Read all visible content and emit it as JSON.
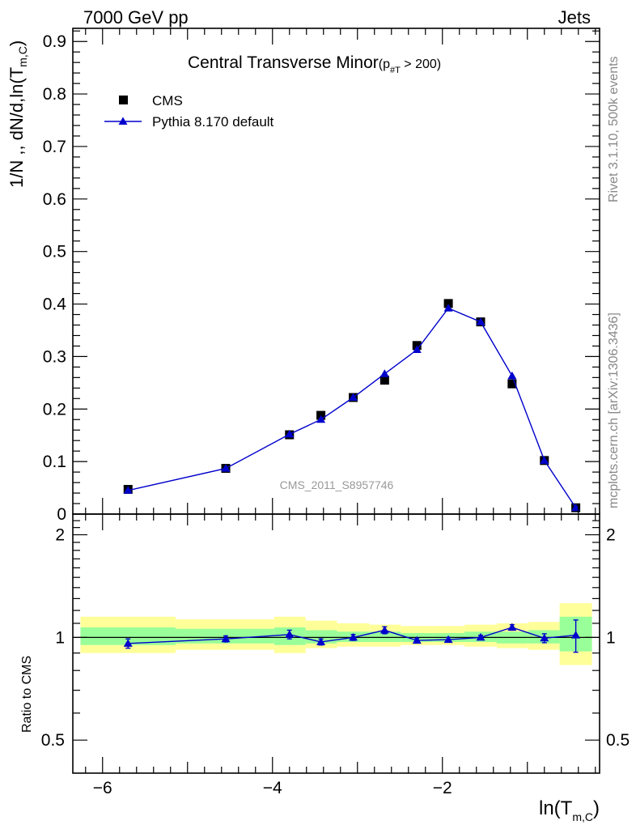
{
  "header": {
    "left": "7000 GeV pp",
    "right": "Jets"
  },
  "side_labels": {
    "rivet": "Rivet 3.1.10,  500k events",
    "mcplots": "mcplots.cern.ch [arXiv:1306.3436]"
  },
  "watermark": "CMS_2011_S8957746",
  "colors": {
    "cms": "#000000",
    "pythia": "#0000cc",
    "band_inner": "#99ff99",
    "band_outer": "#ffff99"
  },
  "chart_data": [
    {
      "type": "scatter",
      "panel": "main",
      "title_main": "Central Transverse Minor",
      "title_sub": "(p",
      "title_sub_index": "#T",
      "title_sub_tail": " > 200)",
      "ylabel": "1/N ,, dN/d,ln(T",
      "ylabel_sub": "m,C",
      "ylabel_tail": ")",
      "xlim": [
        -6.35,
        -0.15
      ],
      "ylim": [
        0,
        0.925
      ],
      "yticks": [
        0,
        0.1,
        0.2,
        0.3,
        0.4,
        0.5,
        0.6,
        0.7,
        0.8,
        0.9
      ],
      "ytick_labels": [
        "0",
        "0.1",
        "0.2",
        "0.3",
        "0.4",
        "0.5",
        "0.6",
        "0.7",
        "0.8",
        "0.9"
      ],
      "legend_position": "top-left",
      "series": [
        {
          "name": "CMS",
          "marker": "square",
          "x": [
            -5.7,
            -4.55,
            -3.8,
            -3.43,
            -3.05,
            -2.68,
            -2.3,
            -1.93,
            -1.55,
            -1.18,
            -0.8,
            -0.43
          ],
          "y": [
            0.047,
            0.087,
            0.151,
            0.188,
            0.222,
            0.255,
            0.321,
            0.401,
            0.366,
            0.248,
            0.102,
            0.012
          ],
          "xerr": [
            0.56,
            0.56,
            0.19,
            0.19,
            0.19,
            0.19,
            0.19,
            0.19,
            0.19,
            0.19,
            0.19,
            0.19
          ]
        },
        {
          "name": "Pythia 8.170 default",
          "marker": "triangle",
          "x": [
            -5.7,
            -4.55,
            -3.8,
            -3.43,
            -3.05,
            -2.68,
            -2.3,
            -1.93,
            -1.55,
            -1.18,
            -0.8,
            -0.43
          ],
          "y": [
            0.045,
            0.087,
            0.152,
            0.18,
            0.222,
            0.267,
            0.313,
            0.392,
            0.366,
            0.263,
            0.102,
            0.012
          ],
          "yerr": [
            0.002,
            0.002,
            0.003,
            0.004,
            0.004,
            0.006,
            0.005,
            0.005,
            0.006,
            0.006,
            0.003,
            0.002
          ]
        }
      ]
    },
    {
      "type": "line",
      "panel": "ratio",
      "ylabel": "Ratio to CMS",
      "xlabel": "ln(T",
      "xlabel_sub": "m,C",
      "xlabel_tail": ")",
      "xlim": [
        -6.35,
        -0.15
      ],
      "ylim": [
        0.4,
        2.3
      ],
      "yticks": [
        0.5,
        1,
        2
      ],
      "ytick_labels": [
        "0.5",
        "1",
        "2"
      ],
      "xticks": [
        -6,
        -4,
        -2
      ],
      "xtick_labels": [
        "−6",
        "−4",
        "−2"
      ],
      "log_y": true,
      "bands": [
        {
          "x0": -6.26,
          "x1": -5.14,
          "lo_outer": 0.9,
          "hi_outer": 1.15,
          "lo_inner": 0.95,
          "hi_inner": 1.07
        },
        {
          "x0": -5.14,
          "x1": -3.98,
          "lo_outer": 0.92,
          "hi_outer": 1.13,
          "lo_inner": 0.96,
          "hi_inner": 1.06
        },
        {
          "x0": -3.98,
          "x1": -3.61,
          "lo_outer": 0.9,
          "hi_outer": 1.15,
          "lo_inner": 0.95,
          "hi_inner": 1.07
        },
        {
          "x0": -3.61,
          "x1": -3.24,
          "lo_outer": 0.93,
          "hi_outer": 1.12,
          "lo_inner": 0.96,
          "hi_inner": 1.05
        },
        {
          "x0": -3.24,
          "x1": -2.86,
          "lo_outer": 0.94,
          "hi_outer": 1.1,
          "lo_inner": 0.97,
          "hi_inner": 1.04
        },
        {
          "x0": -2.86,
          "x1": -2.49,
          "lo_outer": 0.94,
          "hi_outer": 1.09,
          "lo_inner": 0.97,
          "hi_inner": 1.04
        },
        {
          "x0": -2.49,
          "x1": -2.11,
          "lo_outer": 0.95,
          "hi_outer": 1.08,
          "lo_inner": 0.97,
          "hi_inner": 1.03
        },
        {
          "x0": -2.11,
          "x1": -1.74,
          "lo_outer": 0.95,
          "hi_outer": 1.08,
          "lo_inner": 0.97,
          "hi_inner": 1.03
        },
        {
          "x0": -1.74,
          "x1": -1.36,
          "lo_outer": 0.94,
          "hi_outer": 1.09,
          "lo_inner": 0.97,
          "hi_inner": 1.04
        },
        {
          "x0": -1.36,
          "x1": -0.99,
          "lo_outer": 0.93,
          "hi_outer": 1.1,
          "lo_inner": 0.96,
          "hi_inner": 1.04
        },
        {
          "x0": -0.99,
          "x1": -0.62,
          "lo_outer": 0.92,
          "hi_outer": 1.11,
          "lo_inner": 0.96,
          "hi_inner": 1.05
        },
        {
          "x0": -0.62,
          "x1": -0.24,
          "lo_outer": 0.83,
          "hi_outer": 1.26,
          "lo_inner": 0.91,
          "hi_inner": 1.15
        }
      ],
      "series": [
        {
          "name": "Pythia 8.170 default",
          "marker": "triangle",
          "x": [
            -5.7,
            -4.55,
            -3.8,
            -3.43,
            -3.05,
            -2.68,
            -2.3,
            -1.93,
            -1.55,
            -1.18,
            -0.8,
            -0.43
          ],
          "y": [
            0.96,
            0.99,
            1.02,
            0.97,
            1.0,
            1.05,
            0.98,
            0.985,
            1.0,
            1.07,
            0.995,
            1.015
          ],
          "yerr": [
            0.03,
            0.02,
            0.03,
            0.02,
            0.02,
            0.025,
            0.015,
            0.015,
            0.015,
            0.02,
            0.03,
            0.11
          ]
        }
      ]
    }
  ]
}
